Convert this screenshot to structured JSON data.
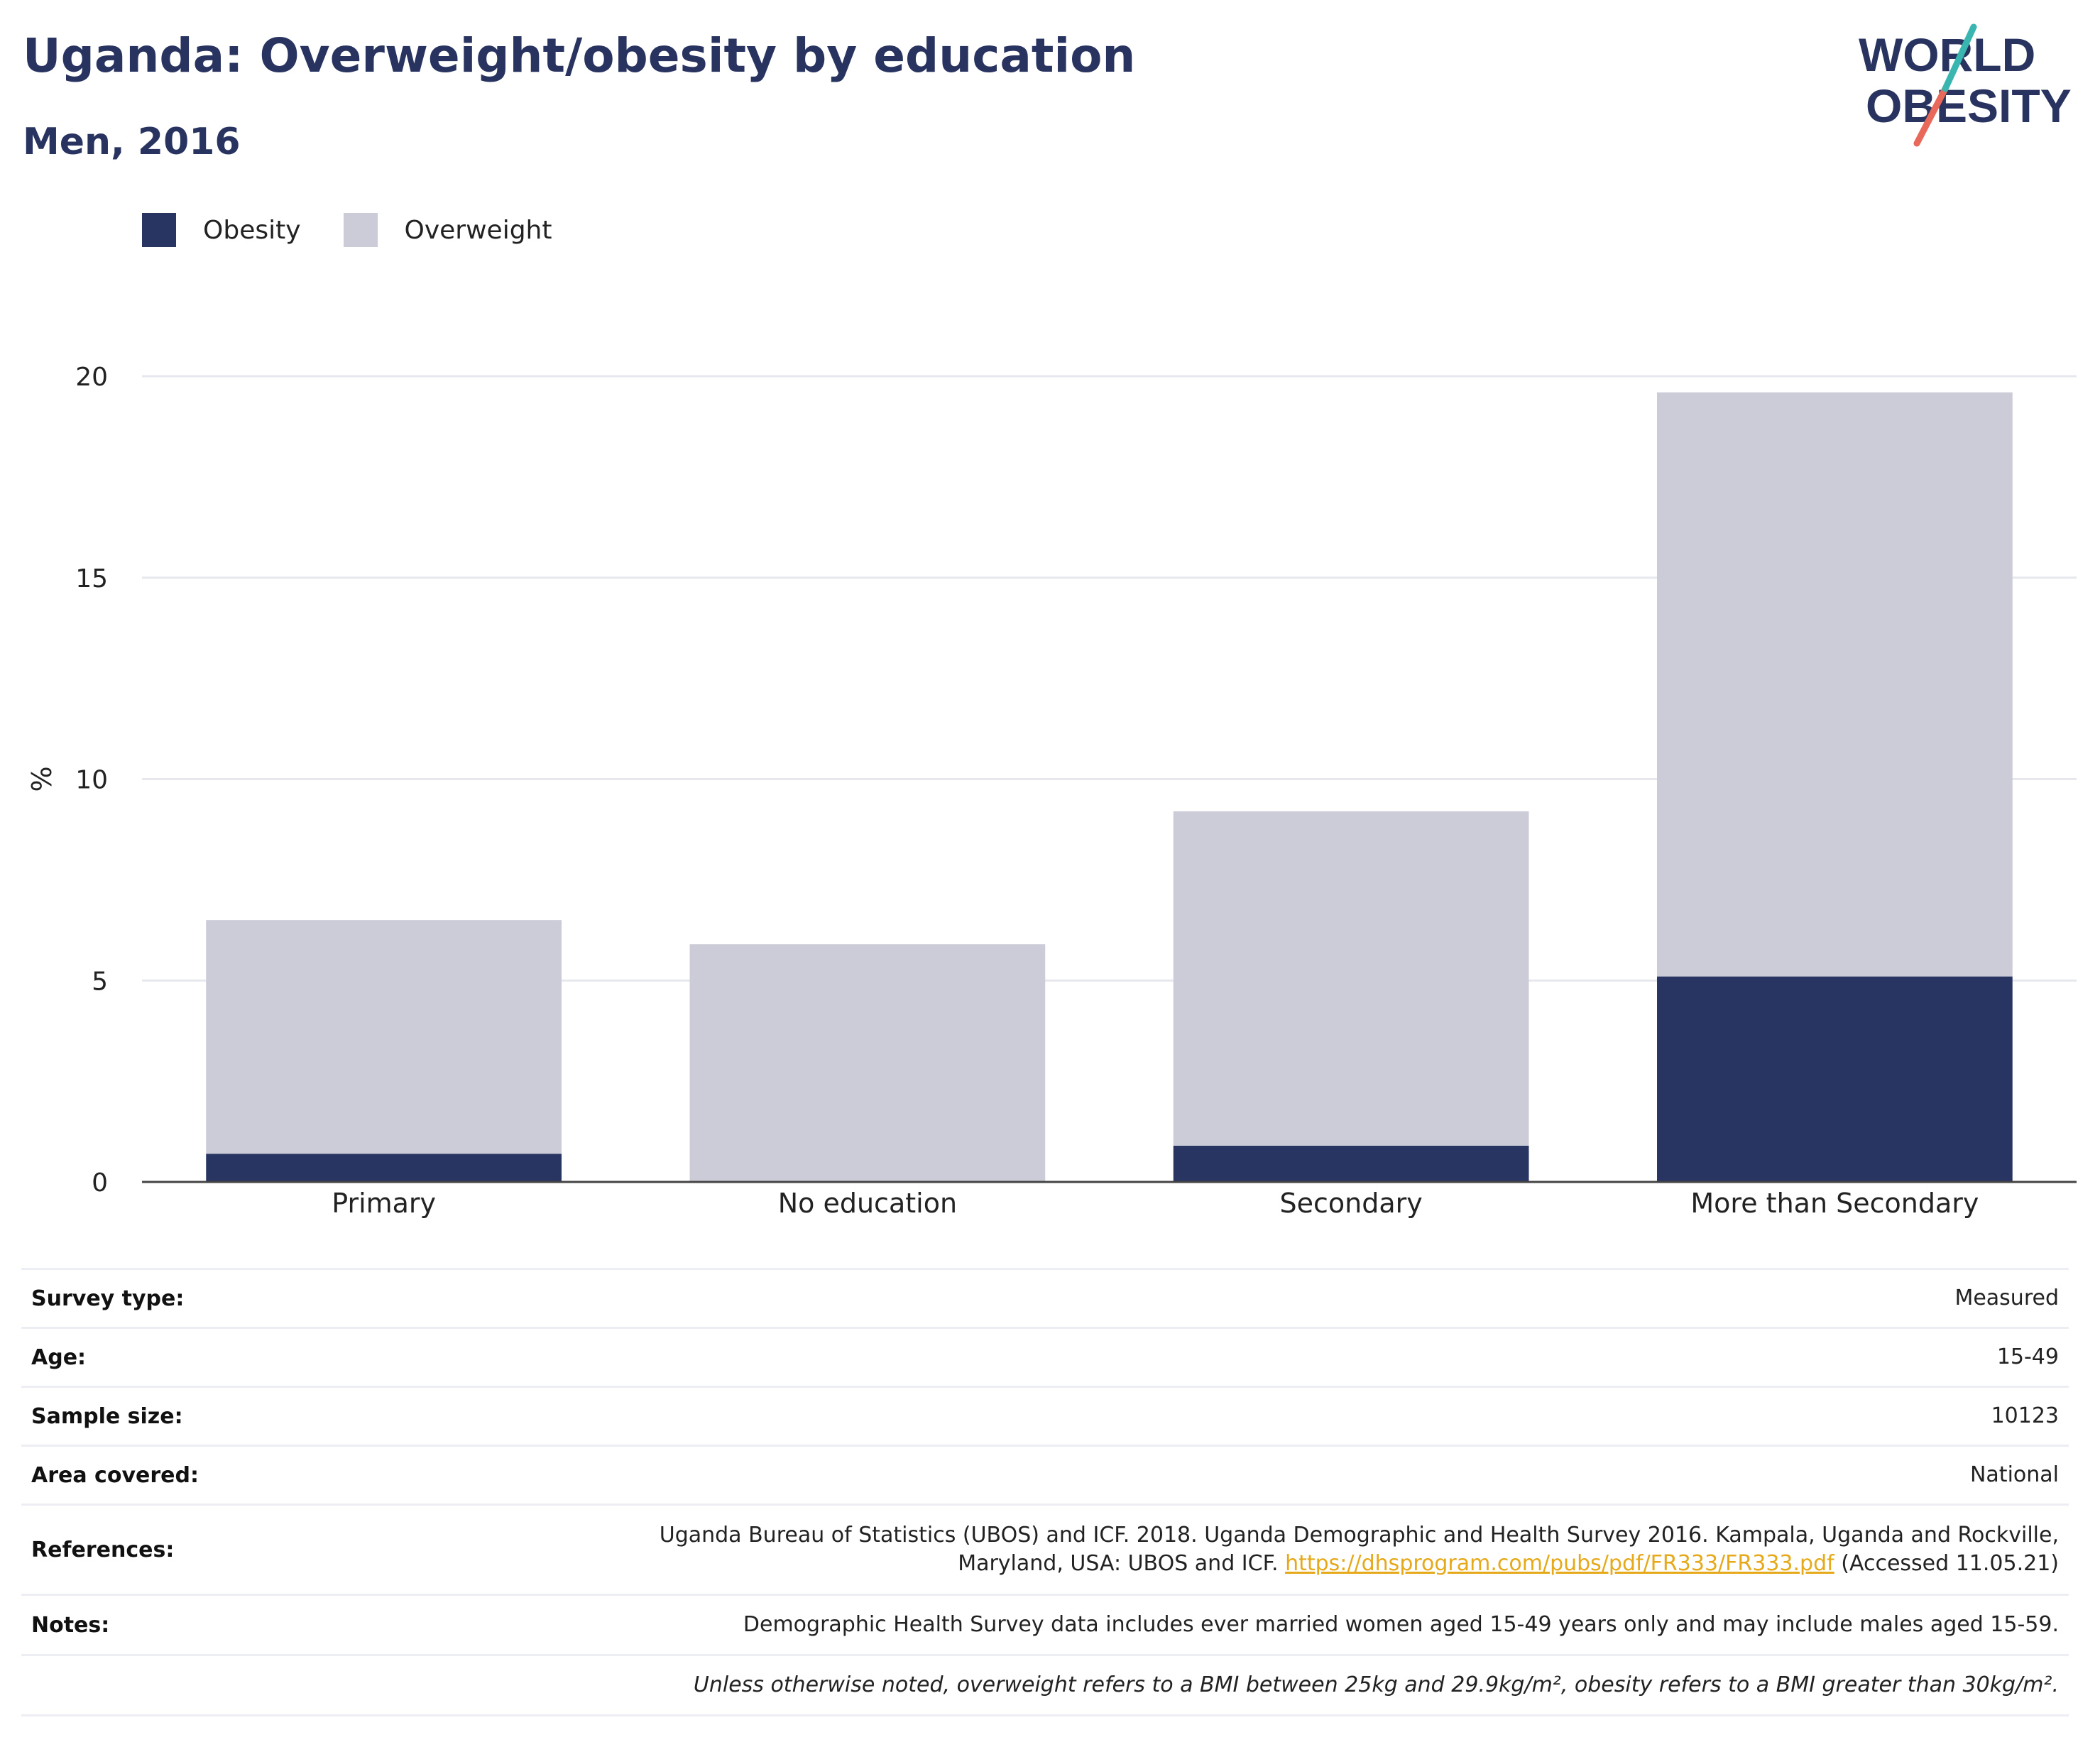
{
  "header": {
    "title": "Uganda: Overweight/obesity by education",
    "subtitle": "Men, 2016",
    "logo_line1": "WORLD",
    "logo_line2": "OBESITY"
  },
  "legend": [
    {
      "label": "Obesity",
      "color": "#283462"
    },
    {
      "label": "Overweight",
      "color": "#cbccd8"
    }
  ],
  "chart_data": {
    "type": "bar",
    "stacked": true,
    "categories": [
      "Primary",
      "No education",
      "Secondary",
      "More than Secondary"
    ],
    "series": [
      {
        "name": "Obesity",
        "color": "#283462",
        "values": [
          0.7,
          0.0,
          0.9,
          5.1
        ]
      },
      {
        "name": "Overweight",
        "color": "#cbccd8",
        "values": [
          5.8,
          5.9,
          8.3,
          14.5
        ]
      }
    ],
    "ylabel": "%",
    "xlabel": "",
    "ylim": [
      0,
      20
    ],
    "yticks": [
      0,
      5,
      10,
      15,
      20
    ],
    "grid": true,
    "legend_position": "top-left"
  },
  "meta": {
    "survey_type": {
      "key": "Survey type:",
      "value": "Measured"
    },
    "age": {
      "key": "Age:",
      "value": "15-49"
    },
    "sample_size": {
      "key": "Sample size:",
      "value": "10123"
    },
    "area": {
      "key": "Area covered:",
      "value": "National"
    },
    "references": {
      "key": "References:",
      "text_line1": "Uganda Bureau of Statistics (UBOS) and ICF. 2018. Uganda Demographic and Health Survey 2016. Kampala, Uganda and Rockville,",
      "text_line2_prefix": "Maryland, USA: UBOS and ICF.",
      "link": "https://dhsprogram.com/pubs/pdf/FR333/FR333.pdf",
      "suffix": "(Accessed 11.05.21)"
    },
    "notes": {
      "key": "Notes:",
      "value": "Demographic Health Survey data includes ever married women aged 15-49 years only and may include males aged 15-59."
    },
    "footnote": "Unless otherwise noted, overweight refers to a BMI between 25kg and 29.9kg/m², obesity refers to a BMI greater than 30kg/m²."
  }
}
